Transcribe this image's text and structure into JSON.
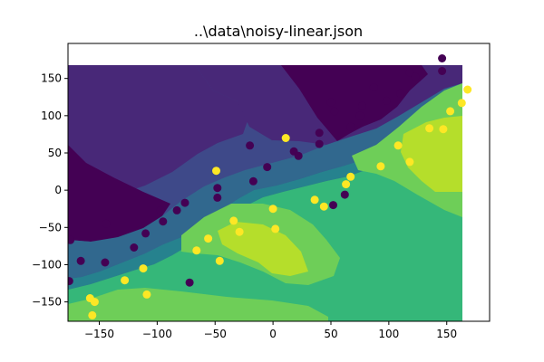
{
  "chart_data": {
    "type": "scatter",
    "title": "..\\data\\noisy-linear.json",
    "xlabel": "",
    "ylabel": "",
    "xlim": [
      -177,
      187
    ],
    "ylim": [
      -176,
      197
    ],
    "xticks": [
      -150,
      -100,
      -50,
      0,
      50,
      100,
      150
    ],
    "yticks": [
      -150,
      -100,
      -50,
      0,
      50,
      100,
      150
    ],
    "xtick_labels": [
      "−150",
      "−100",
      "−50",
      "0",
      "50",
      "100",
      "150"
    ],
    "ytick_labels": [
      "−150",
      "−100",
      "−50",
      "0",
      "50",
      "100",
      "150"
    ],
    "grid": false,
    "colors": {
      "class_0": "#440154",
      "class_1": "#fde725",
      "contour_levels": [
        "#440154",
        "#482878",
        "#3e4989",
        "#31688e",
        "#26828e",
        "#1f9e89",
        "#35b779",
        "#6ece58",
        "#b5de2b",
        "#fde725"
      ]
    },
    "series": [
      {
        "class": 0,
        "points": [
          [
            146,
            177
          ],
          [
            146,
            160
          ],
          [
            118,
            158
          ],
          [
            123,
            152
          ],
          [
            110,
            130
          ],
          [
            87,
            138
          ],
          [
            98,
            120
          ],
          [
            50,
            118
          ],
          [
            53,
            106
          ],
          [
            77,
            113
          ],
          [
            75,
            100
          ],
          [
            67,
            85
          ],
          [
            40,
            77
          ],
          [
            40,
            62
          ],
          [
            18,
            52
          ],
          [
            22,
            46
          ],
          [
            -20,
            60
          ],
          [
            -5,
            31
          ],
          [
            -17,
            12
          ],
          [
            -48,
            3
          ],
          [
            -48,
            -10
          ],
          [
            -76,
            -17
          ],
          [
            -83,
            -27
          ],
          [
            -97,
            -27
          ],
          [
            -95,
            -42
          ],
          [
            -144,
            -45
          ],
          [
            -110,
            -58
          ],
          [
            -120,
            -77
          ],
          [
            -175,
            -67
          ],
          [
            -166,
            -95
          ],
          [
            -145,
            -97
          ],
          [
            -176,
            -122
          ],
          [
            -72,
            -124
          ],
          [
            52,
            -20
          ],
          [
            62,
            -6
          ]
        ]
      },
      {
        "class": 1,
        "points": [
          [
            168,
            135
          ],
          [
            153,
            106
          ],
          [
            163,
            117
          ],
          [
            147,
            82
          ],
          [
            135,
            83
          ],
          [
            108,
            60
          ],
          [
            118,
            38
          ],
          [
            93,
            32
          ],
          [
            11,
            70
          ],
          [
            -49,
            26
          ],
          [
            67,
            18
          ],
          [
            63,
            8
          ],
          [
            36,
            -13
          ],
          [
            44,
            -22
          ],
          [
            0,
            -25
          ],
          [
            -34,
            -41
          ],
          [
            -29,
            -56
          ],
          [
            2,
            -52
          ],
          [
            -56,
            -65
          ],
          [
            -66,
            -81
          ],
          [
            -46,
            -95
          ],
          [
            -112,
            -105
          ],
          [
            -128,
            -121
          ],
          [
            -109,
            -140
          ],
          [
            -158,
            -145
          ],
          [
            -154,
            -150
          ],
          [
            -156,
            -168
          ]
        ]
      }
    ]
  }
}
